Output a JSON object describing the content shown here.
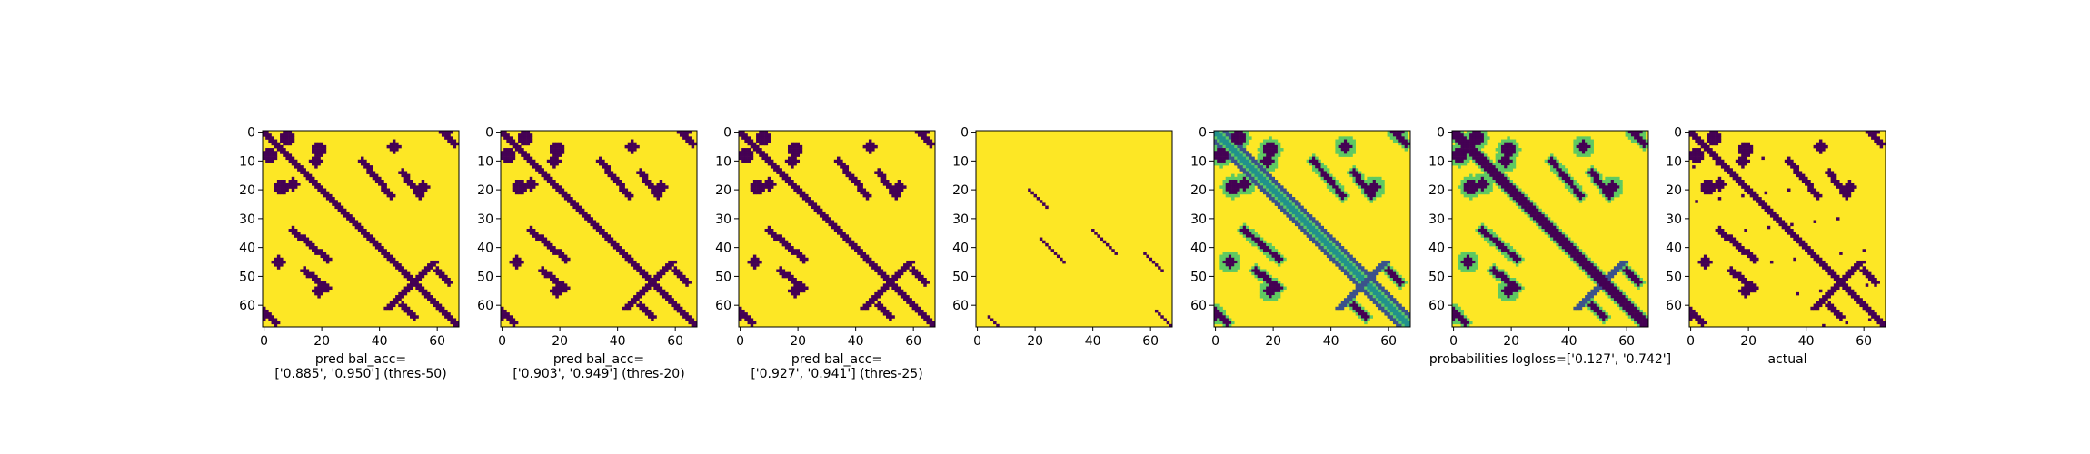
{
  "chart_data": [
    {
      "type": "heatmap",
      "variant": "pred1",
      "xlabel": [
        "pred bal_acc=",
        "['0.885', '0.950'] (thres-50)"
      ],
      "x_ticks": [
        0,
        20,
        40,
        60
      ],
      "y_ticks": [
        0,
        10,
        20,
        30,
        40,
        50,
        60
      ],
      "extent": [
        0,
        68
      ]
    },
    {
      "type": "heatmap",
      "variant": "pred2",
      "xlabel": [
        "pred bal_acc=",
        "['0.903', '0.949'] (thres-20)"
      ],
      "x_ticks": [
        0,
        20,
        40,
        60
      ],
      "y_ticks": [
        0,
        10,
        20,
        30,
        40,
        50,
        60
      ],
      "extent": [
        0,
        68
      ]
    },
    {
      "type": "heatmap",
      "variant": "pred3",
      "xlabel": [
        "pred bal_acc=",
        "['0.927', '0.941'] (thres-25)"
      ],
      "x_ticks": [
        0,
        20,
        40,
        60
      ],
      "y_ticks": [
        0,
        10,
        20,
        30,
        40,
        50,
        60
      ],
      "extent": [
        0,
        68
      ]
    },
    {
      "type": "heatmap",
      "variant": "sparse",
      "xlabel": [],
      "x_ticks": [
        0,
        20,
        40,
        60
      ],
      "y_ticks": [
        0,
        10,
        20,
        30,
        40,
        50,
        60
      ],
      "extent": [
        0,
        68
      ]
    },
    {
      "type": "heatmap",
      "variant": "prob",
      "xlabel": [],
      "x_ticks": [
        0,
        20,
        40,
        60
      ],
      "y_ticks": [
        0,
        10,
        20,
        30,
        40,
        50,
        60
      ],
      "extent": [
        0,
        68
      ]
    },
    {
      "type": "heatmap",
      "variant": "prob2",
      "xlabel": [
        "probabilities logloss=['0.127', '0.742']"
      ],
      "x_ticks": [
        0,
        20,
        40,
        60
      ],
      "y_ticks": [
        0,
        10,
        20,
        30,
        40,
        50,
        60
      ],
      "extent": [
        0,
        68
      ]
    },
    {
      "type": "heatmap",
      "variant": "actual",
      "xlabel": [
        "actual"
      ],
      "x_ticks": [
        0,
        20,
        40,
        60
      ],
      "y_ticks": [
        0,
        10,
        20,
        30,
        40,
        50,
        60
      ],
      "extent": [
        0,
        68
      ]
    }
  ],
  "colors": {
    "high": "#fde725",
    "low": "#440154",
    "mid1": "#21918c",
    "mid2": "#5ec962",
    "mid3": "#3b528b"
  }
}
